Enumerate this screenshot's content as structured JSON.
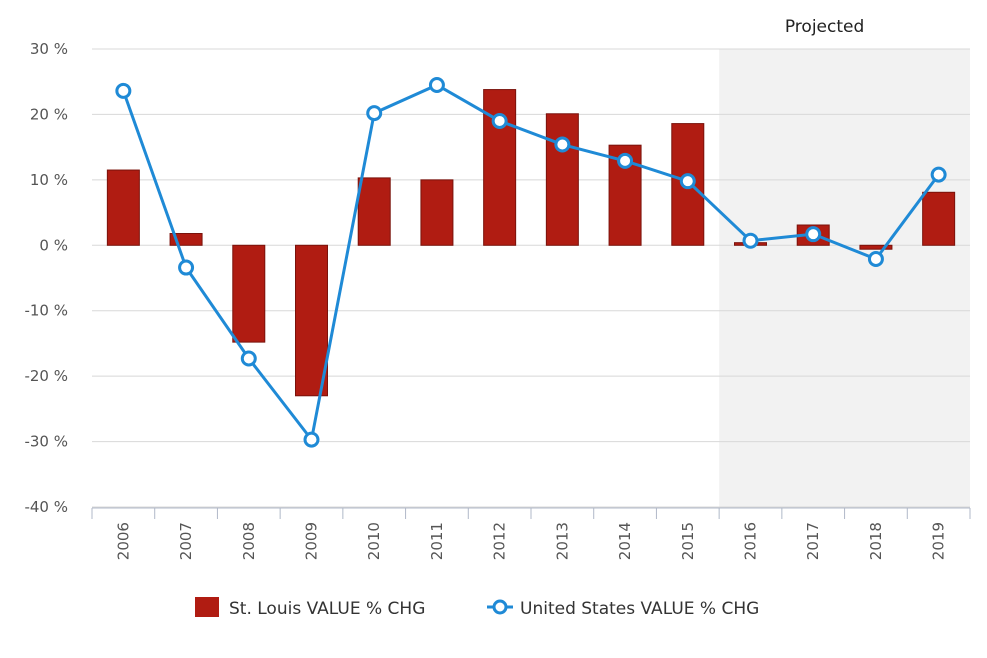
{
  "chart_data": {
    "type": "bar",
    "categories": [
      "2006",
      "2007",
      "2008",
      "2009",
      "2010",
      "2011",
      "2012",
      "2013",
      "2014",
      "2015",
      "2016",
      "2017",
      "2018",
      "2019"
    ],
    "series": [
      {
        "name": "St. Louis VALUE % CHG",
        "kind": "bar",
        "color": "#b01c12",
        "values": [
          11.5,
          1.8,
          -14.8,
          -23.0,
          10.3,
          10.0,
          23.8,
          20.1,
          15.3,
          18.6,
          0.4,
          3.1,
          -0.6,
          8.1
        ]
      },
      {
        "name": "United States VALUE % CHG",
        "kind": "line",
        "color": "#1f8ad6",
        "values": [
          23.6,
          -3.4,
          -17.3,
          -29.7,
          20.2,
          24.5,
          19.0,
          15.4,
          12.9,
          9.8,
          0.7,
          1.7,
          -2.1,
          10.8
        ]
      }
    ],
    "ylim": [
      -40,
      30
    ],
    "yticks": [
      "30 %",
      "20 %",
      "10 %",
      "0 %",
      "-10 %",
      "-20 %",
      "-30 %",
      "-40 %"
    ],
    "ytick_values": [
      30,
      20,
      10,
      0,
      -10,
      -20,
      -30,
      -40
    ],
    "projected_label": "Projected",
    "projected_from": "2016",
    "grid": true,
    "legend_position": "bottom"
  }
}
